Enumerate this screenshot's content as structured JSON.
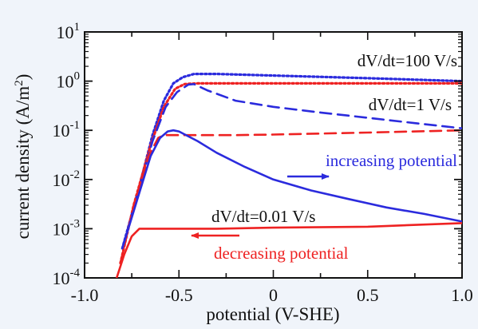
{
  "chart_data": {
    "type": "line",
    "xlabel": "potential  (V-SHE)",
    "ylabel": "current density  (A/m²)",
    "xlim": [
      -1.0,
      1.0
    ],
    "ylim_log10": [
      -4,
      1
    ],
    "yscale": "log",
    "x_ticks": [
      {
        "value": -1.0,
        "label": "-1.0"
      },
      {
        "value": -0.5,
        "label": "-0.5"
      },
      {
        "value": 0.0,
        "label": "0"
      },
      {
        "value": 0.5,
        "label": "0.5"
      },
      {
        "value": 1.0,
        "label": "1.0"
      }
    ],
    "y_ticks": [
      {
        "exp": 1,
        "base": "10",
        "sup": "1"
      },
      {
        "exp": 0,
        "base": "10",
        "sup": "0"
      },
      {
        "exp": -1,
        "base": "10",
        "sup": "-1"
      },
      {
        "exp": -2,
        "base": "10",
        "sup": "-2"
      },
      {
        "exp": -3,
        "base": "10",
        "sup": "-3"
      },
      {
        "exp": -4,
        "base": "10",
        "sup": "-4"
      }
    ],
    "grid": false,
    "series": [
      {
        "group": "dV/dt=100 V/s",
        "direction": "increasing potential",
        "color": "#2b2bdd",
        "dash": "dotted",
        "points": [
          [
            -0.8,
            0.0004
          ],
          [
            -0.72,
            0.005
          ],
          [
            -0.64,
            0.08
          ],
          [
            -0.58,
            0.4
          ],
          [
            -0.53,
            0.9
          ],
          [
            -0.48,
            1.2
          ],
          [
            -0.42,
            1.4
          ],
          [
            -0.3,
            1.4
          ],
          [
            0,
            1.3
          ],
          [
            0.5,
            1.15
          ],
          [
            1.0,
            1.0
          ]
        ]
      },
      {
        "group": "dV/dt=100 V/s",
        "direction": "decreasing potential",
        "color": "#ee2222",
        "dash": "dotted",
        "points": [
          [
            -0.81,
            0.0002
          ],
          [
            -0.74,
            0.003
          ],
          [
            -0.65,
            0.05
          ],
          [
            -0.58,
            0.3
          ],
          [
            -0.52,
            0.7
          ],
          [
            -0.47,
            0.87
          ],
          [
            -0.4,
            0.9
          ],
          [
            -0.2,
            0.9
          ],
          [
            0,
            0.9
          ],
          [
            0.5,
            0.9
          ],
          [
            1.0,
            0.9
          ]
        ]
      },
      {
        "group": "dV/dt=1 V/s",
        "direction": "increasing potential",
        "color": "#2b2bdd",
        "dash": "dashed",
        "points": [
          [
            -0.8,
            0.0004
          ],
          [
            -0.72,
            0.005
          ],
          [
            -0.64,
            0.06
          ],
          [
            -0.57,
            0.3
          ],
          [
            -0.51,
            0.6
          ],
          [
            -0.45,
            0.85
          ],
          [
            -0.42,
            0.87
          ],
          [
            -0.35,
            0.65
          ],
          [
            -0.2,
            0.4
          ],
          [
            0,
            0.3
          ],
          [
            0.25,
            0.23
          ],
          [
            0.5,
            0.18
          ],
          [
            0.75,
            0.14
          ],
          [
            1.0,
            0.11
          ]
        ]
      },
      {
        "group": "dV/dt=1 V/s",
        "direction": "decreasing potential",
        "color": "#ee2222",
        "dash": "dashed",
        "points": [
          [
            -0.81,
            0.0002
          ],
          [
            -0.74,
            0.003
          ],
          [
            -0.66,
            0.03
          ],
          [
            -0.61,
            0.07
          ],
          [
            -0.58,
            0.08
          ],
          [
            -0.5,
            0.08
          ],
          [
            -0.2,
            0.08
          ],
          [
            0,
            0.082
          ],
          [
            0.5,
            0.09
          ],
          [
            1.0,
            0.1
          ]
        ]
      },
      {
        "group": "dV/dt=0.01 V/s",
        "direction": "increasing potential",
        "color": "#2b2bdd",
        "dash": "solid",
        "points": [
          [
            -0.8,
            0.0004
          ],
          [
            -0.72,
            0.004
          ],
          [
            -0.65,
            0.03
          ],
          [
            -0.6,
            0.07
          ],
          [
            -0.56,
            0.095
          ],
          [
            -0.53,
            0.1
          ],
          [
            -0.5,
            0.095
          ],
          [
            -0.4,
            0.06
          ],
          [
            -0.3,
            0.035
          ],
          [
            -0.15,
            0.018
          ],
          [
            0,
            0.01
          ],
          [
            0.2,
            0.006
          ],
          [
            0.4,
            0.004
          ],
          [
            0.6,
            0.0027
          ],
          [
            0.8,
            0.002
          ],
          [
            1.0,
            0.0014
          ]
        ]
      },
      {
        "group": "dV/dt=0.01 V/s",
        "direction": "decreasing potential",
        "color": "#ee2222",
        "dash": "solid",
        "points": [
          [
            -0.83,
            0.0001
          ],
          [
            -0.79,
            0.0003
          ],
          [
            -0.75,
            0.0007
          ],
          [
            -0.71,
            0.001
          ],
          [
            -0.65,
            0.001
          ],
          [
            -0.3,
            0.001
          ],
          [
            0,
            0.00105
          ],
          [
            0.5,
            0.0011
          ],
          [
            1.0,
            0.0013
          ]
        ]
      }
    ],
    "annotations": [
      {
        "text": "dV/dt=100 V/s",
        "color": "#111111"
      },
      {
        "text": "dV/dt=1 V/s",
        "color": "#111111"
      },
      {
        "text": "dV/dt=0.01 V/s",
        "color": "#111111"
      },
      {
        "text": "increasing potential",
        "color": "#2b2bdd"
      },
      {
        "text": "decreasing potential",
        "color": "#ee2222"
      }
    ]
  }
}
